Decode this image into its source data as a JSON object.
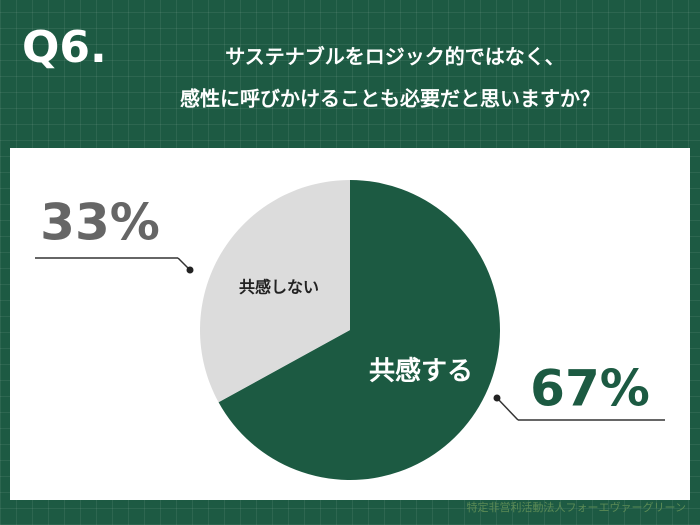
{
  "chart_data": {
    "type": "pie",
    "question_number": "Q6.",
    "title_lines": [
      "サステナブルをロジック的ではなく、",
      "感性に呼びかけることも必要だと思いますか？"
    ],
    "categories": [
      "共感する",
      "共感しない"
    ],
    "values": [
      67,
      33
    ],
    "value_labels": [
      "67%",
      "33%"
    ],
    "colors": [
      "#1c5a42",
      "#dcdcdc"
    ],
    "source": "特定非営利活動法人フォーエヴァーグリーン"
  }
}
